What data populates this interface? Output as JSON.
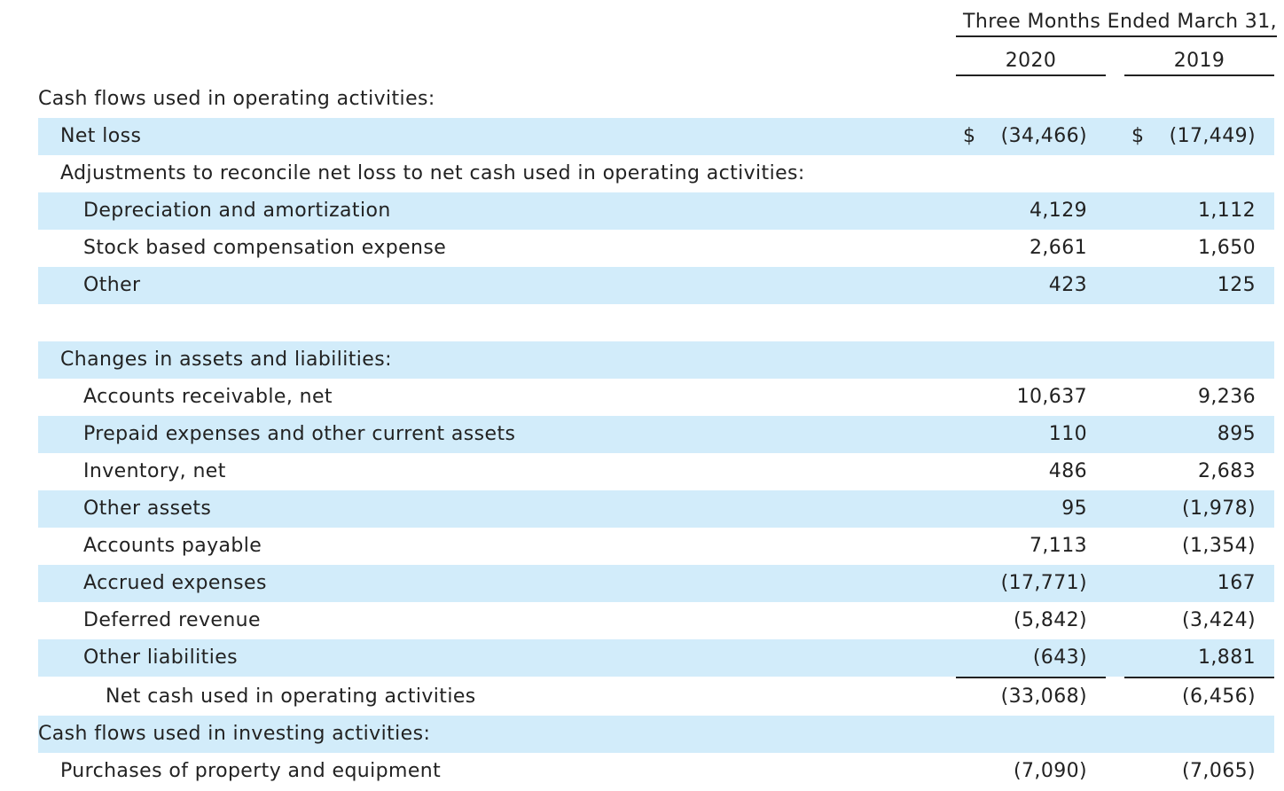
{
  "header": {
    "period": "Three Months Ended March 31,",
    "year_1": "2020",
    "year_2": "2019"
  },
  "rows": [
    {
      "label": "Cash flows used in operating activities:",
      "v2020": "",
      "v2019": ""
    },
    {
      "label": "Net loss",
      "dollar": "$",
      "v2020": "(34,466)",
      "v2019": "(17,449)"
    },
    {
      "label": "Adjustments to reconcile net loss to net cash used in operating activities:",
      "v2020": "",
      "v2019": ""
    },
    {
      "label": "Depreciation and amortization",
      "v2020": "4,129",
      "v2019": "1,112"
    },
    {
      "label": "Stock based compensation expense",
      "v2020": "2,661",
      "v2019": "1,650"
    },
    {
      "label": "Other",
      "v2020": "423",
      "v2019": "125"
    },
    {
      "label": "",
      "v2020": "",
      "v2019": ""
    },
    {
      "label": "Changes in assets and liabilities:",
      "v2020": "",
      "v2019": ""
    },
    {
      "label": "Accounts receivable, net",
      "v2020": "10,637",
      "v2019": "9,236"
    },
    {
      "label": "Prepaid expenses and other current assets",
      "v2020": "110",
      "v2019": "895"
    },
    {
      "label": "Inventory, net",
      "v2020": "486",
      "v2019": "2,683"
    },
    {
      "label": "Other assets",
      "v2020": "95",
      "v2019": "(1,978)"
    },
    {
      "label": "Accounts payable",
      "v2020": "7,113",
      "v2019": "(1,354)"
    },
    {
      "label": "Accrued expenses",
      "v2020": "(17,771)",
      "v2019": "167"
    },
    {
      "label": "Deferred revenue",
      "v2020": "(5,842)",
      "v2019": "(3,424)"
    },
    {
      "label": "Other liabilities",
      "v2020": "(643)",
      "v2019": "1,881"
    },
    {
      "label": "Net cash used in operating activities",
      "v2020": "(33,068)",
      "v2019": "(6,456)"
    },
    {
      "label": "Cash flows used in investing activities:",
      "v2020": "",
      "v2019": ""
    },
    {
      "label": "Purchases of property and equipment",
      "v2020": "(7,090)",
      "v2019": "(7,065)"
    }
  ]
}
